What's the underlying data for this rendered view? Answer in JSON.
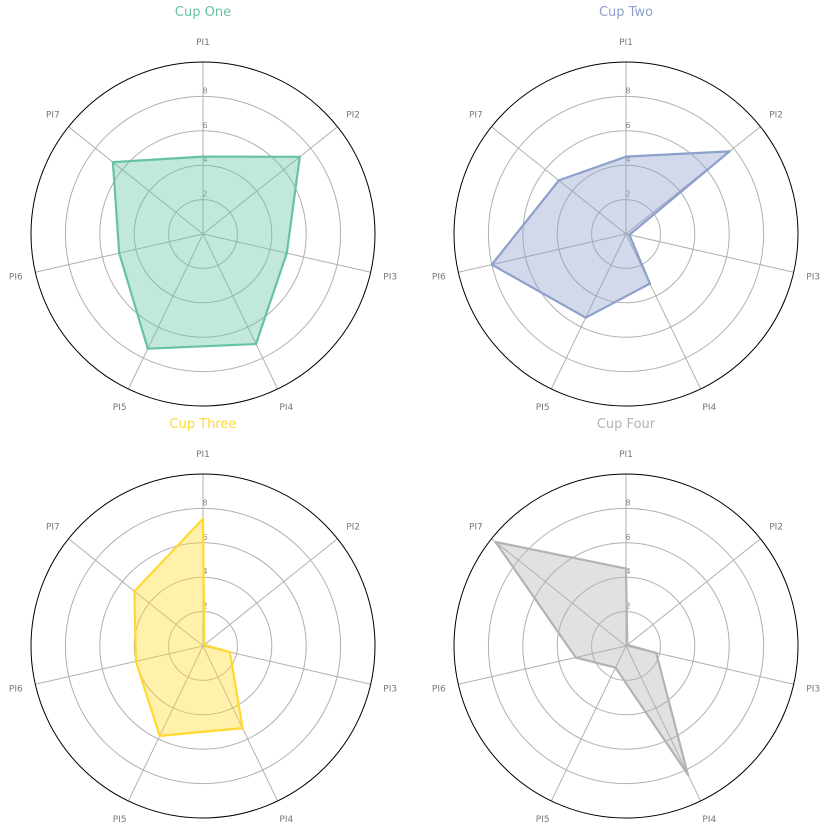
{
  "chart_data": [
    {
      "type": "radar",
      "title": "Cup One",
      "color": "#66c2a5",
      "categories": [
        "PI1",
        "PI2",
        "PI3",
        "PI4",
        "PI5",
        "PI6",
        "PI7"
      ],
      "values": [
        4.5,
        7.2,
        5.0,
        7.1,
        7.4,
        5.0,
        6.7
      ],
      "r_ticks": [
        "2",
        "4",
        "6",
        "8"
      ],
      "r_max": 10
    },
    {
      "type": "radar",
      "title": "Cup Two",
      "color": "#8da0cb",
      "categories": [
        "PI1",
        "PI2",
        "PI3",
        "PI4",
        "PI5",
        "PI6",
        "PI7"
      ],
      "values": [
        4.5,
        7.7,
        0.2,
        3.2,
        5.4,
        8.0,
        5.0
      ],
      "r_ticks": [
        "2",
        "4",
        "6",
        "8"
      ],
      "r_max": 10
    },
    {
      "type": "radar",
      "title": "Cup Three",
      "color": "#ffd92f",
      "categories": [
        "PI1",
        "PI2",
        "PI3",
        "PI4",
        "PI5",
        "PI6",
        "PI7"
      ],
      "values": [
        7.4,
        0.1,
        1.6,
        5.3,
        5.8,
        4.0,
        5.1
      ],
      "r_ticks": [
        "2",
        "4",
        "6",
        "8"
      ],
      "r_max": 10
    },
    {
      "type": "radar",
      "title": "Cup Four",
      "color": "#b3b3b3",
      "categories": [
        "PI1",
        "PI2",
        "PI3",
        "PI4",
        "PI5",
        "PI6",
        "PI7"
      ],
      "values": [
        4.5,
        0.1,
        1.8,
        8.3,
        1.4,
        3.0,
        9.7
      ],
      "r_ticks": [
        "2",
        "4",
        "6",
        "8"
      ],
      "r_max": 10
    }
  ]
}
